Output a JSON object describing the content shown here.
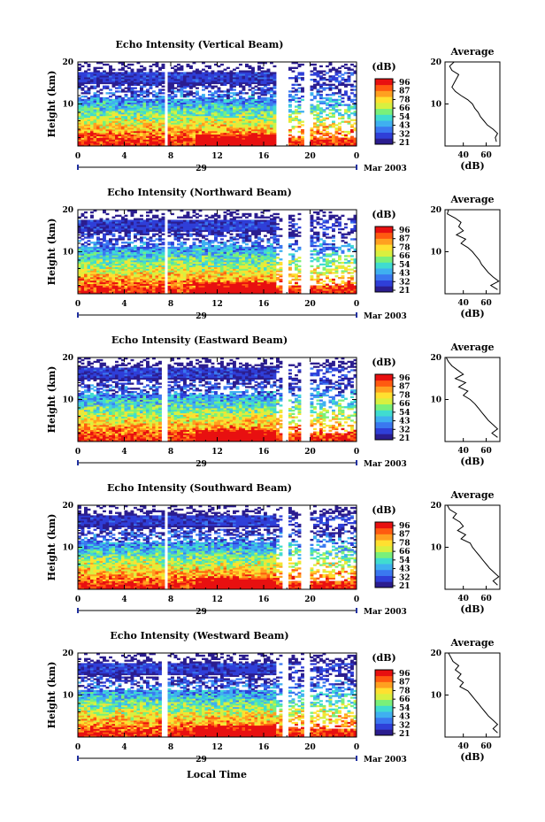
{
  "x_axis_title": "Local Time",
  "colorbar": {
    "unit": "(dB)",
    "tick_labels": [
      "96",
      "87",
      "78",
      "66",
      "54",
      "43",
      "32",
      "21"
    ],
    "colors": [
      "#2b1d8f",
      "#2f3fd8",
      "#3a78f0",
      "#3fb0f0",
      "#40dcd0",
      "#7af07a",
      "#d8f040",
      "#ffe030",
      "#ffa020",
      "#ff5a10",
      "#e81010"
    ]
  },
  "chart_data": [
    {
      "type": "heatmap",
      "title": "Echo Intensity (Vertical Beam)",
      "ylabel": "Height (km)",
      "ylim": [
        0,
        20
      ],
      "yticks": [
        "20",
        "10"
      ],
      "xlim": [
        0,
        24
      ],
      "xticks": [
        "0",
        "4",
        "8",
        "12",
        "16",
        "20",
        "0"
      ],
      "date_day": "29",
      "date_month": "Mar 2003",
      "value_label": "(dB)",
      "color_ticks": [
        "96",
        "87",
        "78",
        "66",
        "54",
        "43",
        "32",
        "21"
      ],
      "gaps_hours": [
        [
          7.5,
          7.85
        ],
        [
          17.2,
          18.1
        ],
        [
          19.4,
          19.9
        ]
      ],
      "profile": {
        "title": "Average",
        "xlabel": "(dB)",
        "xticks": [
          "40",
          "60"
        ],
        "yticks": [
          "20",
          "10"
        ],
        "heights_km": [
          20,
          19,
          18,
          17,
          16,
          15,
          14,
          13,
          12,
          11,
          10,
          9,
          8,
          7,
          6,
          5,
          4,
          3,
          2,
          1
        ],
        "values_db": [
          32,
          28,
          30,
          36,
          34,
          32,
          30,
          33,
          38,
          44,
          48,
          50,
          53,
          55,
          58,
          61,
          66,
          70,
          68,
          69
        ]
      }
    },
    {
      "type": "heatmap",
      "title": "Echo Intensity (Northward Beam)",
      "ylabel": "Height (km)",
      "ylim": [
        0,
        20
      ],
      "yticks": [
        "20",
        "10"
      ],
      "xlim": [
        0,
        24
      ],
      "xticks": [
        "0",
        "4",
        "8",
        "12",
        "16",
        "20",
        "0"
      ],
      "date_day": "29",
      "date_month": "Mar 2003",
      "value_label": "(dB)",
      "color_ticks": [
        "96",
        "87",
        "78",
        "66",
        "54",
        "43",
        "32",
        "21"
      ],
      "gaps_hours": [
        [
          7.4,
          7.8
        ],
        [
          17.5,
          18.1
        ],
        [
          19.3,
          19.9
        ]
      ],
      "profile": {
        "title": "Average",
        "xlabel": "(dB)",
        "xticks": [
          "40",
          "60"
        ],
        "yticks": [
          "20",
          "10"
        ],
        "heights_km": [
          20,
          19,
          18,
          17,
          16,
          15,
          14,
          13,
          12,
          11,
          10,
          9,
          8,
          7,
          6,
          5,
          4,
          3,
          2,
          1
        ],
        "values_db": [
          27,
          26,
          33,
          38,
          36,
          40,
          34,
          42,
          38,
          44,
          48,
          51,
          54,
          56,
          59,
          62,
          66,
          71,
          64,
          70
        ]
      }
    },
    {
      "type": "heatmap",
      "title": "Echo Intensity (Eastward Beam)",
      "ylabel": "Height (km)",
      "ylim": [
        0,
        20
      ],
      "yticks": [
        "20",
        "10"
      ],
      "xlim": [
        0,
        24
      ],
      "xticks": [
        "0",
        "4",
        "8",
        "12",
        "16",
        "20",
        "0"
      ],
      "date_day": "29",
      "date_month": "Mar 2003",
      "value_label": "(dB)",
      "color_ticks": [
        "96",
        "87",
        "78",
        "66",
        "54",
        "43",
        "32",
        "21"
      ],
      "gaps_hours": [
        [
          7.3,
          7.7
        ],
        [
          17.6,
          18.1
        ],
        [
          19.3,
          19.9
        ]
      ],
      "profile": {
        "title": "Average",
        "xlabel": "(dB)",
        "xticks": [
          "40",
          "60"
        ],
        "yticks": [
          "20",
          "10"
        ],
        "heights_km": [
          20,
          19,
          18,
          17,
          16,
          15,
          14,
          13,
          12,
          11,
          10,
          9,
          8,
          7,
          6,
          5,
          4,
          3,
          2,
          1
        ],
        "values_db": [
          25,
          27,
          30,
          35,
          40,
          33,
          42,
          36,
          44,
          40,
          46,
          50,
          53,
          56,
          59,
          62,
          66,
          70,
          65,
          70
        ]
      }
    },
    {
      "type": "heatmap",
      "title": "Echo Intensity (Southward Beam)",
      "ylabel": "Height (km)",
      "ylim": [
        0,
        20
      ],
      "yticks": [
        "20",
        "10"
      ],
      "xlim": [
        0,
        24
      ],
      "xticks": [
        "0",
        "4",
        "8",
        "12",
        "16",
        "20",
        "0"
      ],
      "date_day": "29",
      "date_month": "Mar 2003",
      "value_label": "(dB)",
      "color_ticks": [
        "96",
        "87",
        "78",
        "66",
        "54",
        "43",
        "32",
        "21"
      ],
      "gaps_hours": [
        [
          7.4,
          7.8
        ],
        [
          17.5,
          18.1
        ],
        [
          19.3,
          19.9
        ]
      ],
      "profile": {
        "title": "Average",
        "xlabel": "(dB)",
        "xticks": [
          "40",
          "60"
        ],
        "yticks": [
          "20",
          "10"
        ],
        "heights_km": [
          20,
          19,
          18,
          17,
          16,
          15,
          14,
          13,
          12,
          11,
          10,
          9,
          8,
          7,
          6,
          5,
          4,
          3,
          2,
          1
        ],
        "values_db": [
          26,
          28,
          34,
          31,
          37,
          40,
          35,
          42,
          38,
          46,
          48,
          51,
          54,
          57,
          60,
          63,
          67,
          71,
          66,
          70
        ]
      }
    },
    {
      "type": "heatmap",
      "title": "Echo Intensity (Westward Beam)",
      "ylabel": "Height (km)",
      "ylim": [
        0,
        20
      ],
      "yticks": [
        "20",
        "10"
      ],
      "xlim": [
        0,
        24
      ],
      "xticks": [
        "0",
        "4",
        "8",
        "12",
        "16",
        "20",
        "0"
      ],
      "date_day": "29",
      "date_month": "Mar 2003",
      "value_label": "(dB)",
      "color_ticks": [
        "96",
        "87",
        "78",
        "66",
        "54",
        "43",
        "32",
        "21"
      ],
      "gaps_hours": [
        [
          7.3,
          7.7
        ],
        [
          17.6,
          18.1
        ],
        [
          19.4,
          19.9
        ]
      ],
      "profile": {
        "title": "Average",
        "xlabel": "(dB)",
        "xticks": [
          "40",
          "60"
        ],
        "yticks": [
          "20",
          "10"
        ],
        "heights_km": [
          20,
          19,
          18,
          17,
          16,
          15,
          14,
          13,
          12,
          11,
          10,
          9,
          8,
          7,
          6,
          5,
          4,
          3,
          2,
          1
        ],
        "values_db": [
          27,
          29,
          31,
          36,
          33,
          38,
          35,
          40,
          37,
          44,
          47,
          50,
          53,
          56,
          59,
          62,
          66,
          70,
          66,
          70
        ]
      }
    }
  ]
}
